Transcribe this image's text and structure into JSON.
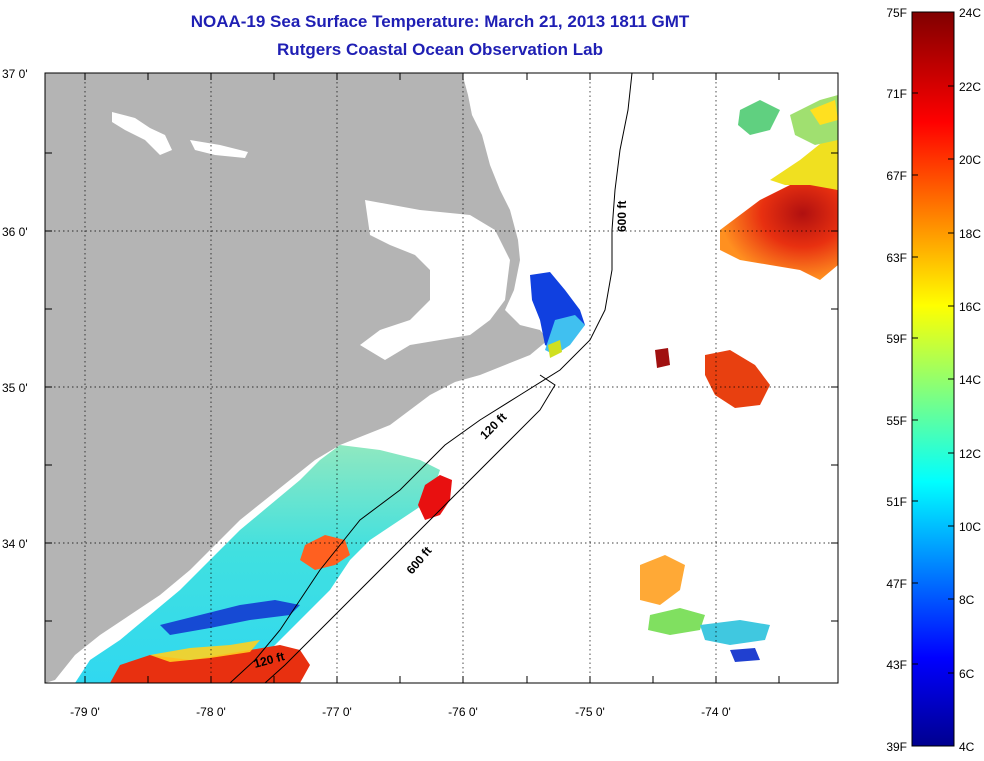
{
  "title": {
    "line1": "NOAA-19 Sea Surface Temperature:  March 21, 2013 1811 GMT",
    "line2": "Rutgers Coastal Ocean Observation Lab"
  },
  "map": {
    "lat_labels": [
      "37 0'",
      "36 0'",
      "35 0'",
      "34 0'"
    ],
    "lon_labels": [
      "-79 0'",
      "-78 0'",
      "-77 0'",
      "-76 0'",
      "-75 0'",
      "-74 0'"
    ],
    "contours": {
      "c600_north": "600 ft",
      "c600_south": "600 ft",
      "c120_mid": "120 ft",
      "c120_south": "120 ft"
    },
    "colors": {
      "land": "#b4b4b4",
      "ocean_nodata": "#ffffff",
      "title": "#1f1fb4"
    }
  },
  "colorbar": {
    "fahrenheit": [
      "75F",
      "71F",
      "67F",
      "63F",
      "59F",
      "55F",
      "51F",
      "47F",
      "43F",
      "39F"
    ],
    "celsius": [
      "24C",
      "22C",
      "20C",
      "18C",
      "16C",
      "14C",
      "12C",
      "10C",
      "8C",
      "6C",
      "4C"
    ],
    "range_f": [
      39,
      75
    ],
    "range_c": [
      4,
      24
    ]
  }
}
